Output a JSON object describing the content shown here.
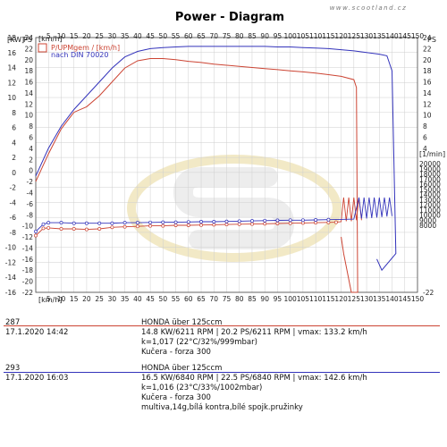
{
  "header": {
    "watermark": "www.scootland.cz"
  },
  "chart_data": {
    "type": "line",
    "title": "Power - Diagram",
    "legend_lines": [
      "P/UPMgem / [km/h]",
      "nach DIN 70020"
    ],
    "x_top_label": "[km/h]",
    "x_bottom_label": "[km/h]",
    "left_axis_label": "[KW]",
    "left_axis2_label": "PS",
    "right_axis_label": "PS",
    "right_axis2_label": "[1/min]",
    "x": {
      "min": 0,
      "max": 150,
      "ticks": [
        5,
        10,
        15,
        20,
        25,
        30,
        35,
        40,
        45,
        50,
        55,
        60,
        65,
        70,
        75,
        80,
        85,
        90,
        95,
        100,
        105,
        110,
        115,
        120,
        125,
        130,
        135,
        140,
        145,
        150
      ]
    },
    "kw_axis": {
      "min": -16,
      "max": 18,
      "ticks": [
        -16,
        -14,
        -12,
        -10,
        -8,
        -6,
        -4,
        -2,
        0,
        2,
        4,
        6,
        8,
        10,
        12,
        14,
        16,
        18
      ]
    },
    "ps_axis": {
      "min": -22,
      "max": 24,
      "ticks": [
        -22,
        -20,
        -18,
        -16,
        -14,
        -12,
        -10,
        -8,
        -6,
        -4,
        -2,
        0,
        2,
        4,
        6,
        8,
        10,
        12,
        14,
        16,
        18,
        20,
        22,
        24
      ]
    },
    "rpm_axis": {
      "min": 0,
      "max": 20000,
      "ticks": [
        8000,
        9000,
        10000,
        11000,
        12000,
        13000,
        14000,
        15000,
        16000,
        17000,
        18000,
        19000,
        20000
      ]
    },
    "grid": true,
    "series": [
      {
        "color": "#cc4433",
        "power_ps": [
          [
            0,
            -2
          ],
          [
            5,
            3
          ],
          [
            10,
            7.5
          ],
          [
            15,
            10.5
          ],
          [
            20,
            11.5
          ],
          [
            25,
            13.5
          ],
          [
            30,
            16
          ],
          [
            35,
            18.5
          ],
          [
            40,
            19.8
          ],
          [
            45,
            20.2
          ],
          [
            50,
            20.2
          ],
          [
            55,
            20
          ],
          [
            60,
            19.7
          ],
          [
            65,
            19.5
          ],
          [
            70,
            19.2
          ],
          [
            75,
            19
          ],
          [
            80,
            18.8
          ],
          [
            85,
            18.6
          ],
          [
            90,
            18.4
          ],
          [
            95,
            18.2
          ],
          [
            100,
            18
          ],
          [
            105,
            17.8
          ],
          [
            110,
            17.6
          ],
          [
            115,
            17.3
          ],
          [
            120,
            17
          ],
          [
            125,
            16.4
          ],
          [
            126,
            15
          ],
          [
            126.5,
            -22
          ],
          [
            124,
            -22
          ],
          [
            121,
            -15
          ],
          [
            120,
            -12
          ]
        ],
        "rpm": [
          [
            0,
            6000
          ],
          [
            3,
            7400
          ],
          [
            5,
            7500
          ],
          [
            10,
            7300
          ],
          [
            15,
            7300
          ],
          [
            20,
            7200
          ],
          [
            25,
            7300
          ],
          [
            30,
            7600
          ],
          [
            35,
            7700
          ],
          [
            40,
            7800
          ],
          [
            45,
            7900
          ],
          [
            50,
            7900
          ],
          [
            55,
            8000
          ],
          [
            60,
            8000
          ],
          [
            65,
            8050
          ],
          [
            70,
            8100
          ],
          [
            75,
            8150
          ],
          [
            80,
            8200
          ],
          [
            85,
            8250
          ],
          [
            90,
            8300
          ],
          [
            95,
            8350
          ],
          [
            100,
            8400
          ],
          [
            105,
            8450
          ],
          [
            110,
            8500
          ],
          [
            115,
            8550
          ],
          [
            118,
            8600
          ],
          [
            120,
            8700
          ],
          [
            121,
            13400
          ],
          [
            122,
            8800
          ],
          [
            123,
            13400
          ],
          [
            124,
            8800
          ],
          [
            125,
            13400
          ],
          [
            126,
            9000
          ],
          [
            127,
            13400
          ],
          [
            128,
            9000
          ]
        ]
      },
      {
        "color": "#3333bb",
        "power_ps": [
          [
            0,
            -1
          ],
          [
            5,
            4
          ],
          [
            10,
            8
          ],
          [
            15,
            11
          ],
          [
            20,
            13.5
          ],
          [
            25,
            16
          ],
          [
            30,
            18.5
          ],
          [
            35,
            20.5
          ],
          [
            40,
            21.5
          ],
          [
            45,
            22
          ],
          [
            50,
            22.2
          ],
          [
            55,
            22.3
          ],
          [
            60,
            22.4
          ],
          [
            65,
            22.4
          ],
          [
            70,
            22.4
          ],
          [
            75,
            22.4
          ],
          [
            80,
            22.4
          ],
          [
            85,
            22.4
          ],
          [
            90,
            22.4
          ],
          [
            95,
            22.3
          ],
          [
            100,
            22.3
          ],
          [
            105,
            22.2
          ],
          [
            110,
            22.1
          ],
          [
            115,
            22
          ],
          [
            120,
            21.8
          ],
          [
            125,
            21.6
          ],
          [
            130,
            21.3
          ],
          [
            135,
            21
          ],
          [
            138,
            20.7
          ],
          [
            140,
            18
          ],
          [
            141.5,
            -15
          ],
          [
            136,
            -18
          ],
          [
            134,
            -16
          ]
        ],
        "rpm": [
          [
            0,
            6800
          ],
          [
            3,
            8200
          ],
          [
            5,
            8500
          ],
          [
            10,
            8500
          ],
          [
            15,
            8400
          ],
          [
            20,
            8400
          ],
          [
            25,
            8400
          ],
          [
            30,
            8400
          ],
          [
            35,
            8500
          ],
          [
            40,
            8500
          ],
          [
            45,
            8550
          ],
          [
            50,
            8600
          ],
          [
            55,
            8600
          ],
          [
            60,
            8650
          ],
          [
            65,
            8700
          ],
          [
            70,
            8700
          ],
          [
            75,
            8750
          ],
          [
            80,
            8800
          ],
          [
            85,
            8850
          ],
          [
            90,
            8900
          ],
          [
            95,
            8950
          ],
          [
            100,
            9000
          ],
          [
            105,
            9000
          ],
          [
            110,
            9050
          ],
          [
            115,
            9100
          ],
          [
            120,
            9150
          ],
          [
            125,
            9200
          ],
          [
            127,
            13400
          ],
          [
            128,
            9300
          ],
          [
            129,
            13400
          ],
          [
            130,
            9300
          ],
          [
            131,
            13400
          ],
          [
            132,
            9400
          ],
          [
            133,
            13400
          ],
          [
            134,
            9500
          ],
          [
            135,
            13400
          ],
          [
            136,
            9600
          ],
          [
            137,
            13400
          ],
          [
            138,
            9700
          ],
          [
            139,
            13400
          ],
          [
            140,
            9800
          ]
        ]
      }
    ]
  },
  "runs": [
    {
      "id": "287",
      "date": "17.1.2020   14:42",
      "model": "HONDA über 125ccm",
      "perf": "14.8 KW/6211 RPM   |  20.2 PS/6211 RPM   |  vmax: 133.2 km/h",
      "k": "k=1,017 (22°C/32%/999mbar)",
      "owner": "Kučera - forza 300",
      "note": "",
      "color": "#cc4433"
    },
    {
      "id": "293",
      "date": "17.1.2020   16:03",
      "model": "HONDA über 125ccm",
      "perf": "16.5 KW/6840 RPM   |  22.5 PS/6840 RPM   |  vmax: 142.6 km/h",
      "k": "k=1,016 (23°C/33%/1002mbar)",
      "owner": "Kučera - forza 300",
      "note": "multiva,14g,bílá kontra,bílé spojk.pružinky",
      "color": "#3333bb"
    }
  ]
}
